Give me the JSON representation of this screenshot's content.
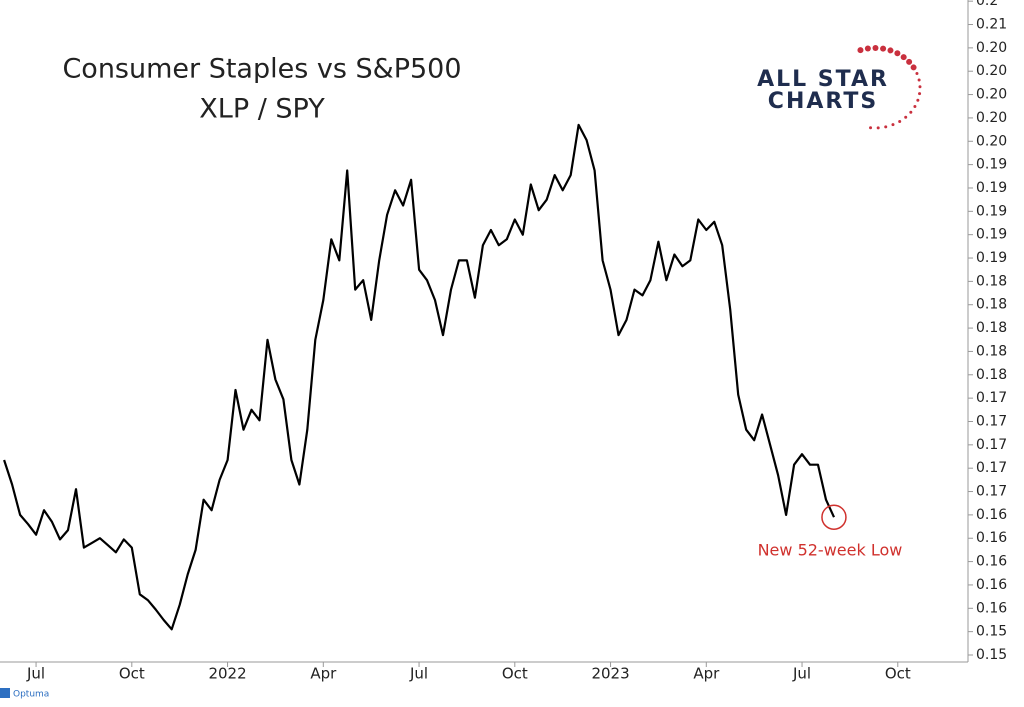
{
  "chart_data": {
    "type": "line",
    "title": "Consumer Staples vs S&P500",
    "subtitle": "XLP / SPY",
    "logo": [
      "ALL STAR",
      "CHARTS"
    ],
    "footer": "Optuma",
    "annotation": "New 52-week Low",
    "color": "#000000",
    "annotation_color": "#d0312d",
    "x": [
      5,
      5.25,
      5.5,
      5.75,
      6,
      6.25,
      6.5,
      6.75,
      7,
      7.25,
      7.5,
      7.75,
      8,
      8.25,
      8.5,
      8.75,
      9,
      9.25,
      9.5,
      9.75,
      10,
      10.25,
      10.5,
      10.75,
      11,
      11.25,
      11.5,
      11.75,
      12,
      12.25,
      12.5,
      12.75,
      13,
      13.25,
      13.5,
      13.75,
      14,
      14.25,
      14.5,
      14.75,
      15,
      15.25,
      15.5,
      15.75,
      16,
      16.25,
      16.5,
      16.75,
      17,
      17.25,
      17.5,
      17.75,
      18,
      18.25,
      18.5,
      18.75,
      19,
      19.25,
      19.5,
      19.75,
      20,
      20.25,
      20.5,
      20.75,
      21,
      21.25,
      21.5,
      21.75,
      22,
      22.25,
      22.5,
      22.75,
      23,
      23.25,
      23.5,
      23.75,
      24,
      24.25,
      24.5,
      24.75,
      25,
      25.25,
      25.5,
      25.75,
      26,
      26.25,
      26.5,
      26.75,
      27,
      27.25,
      27.5,
      27.75,
      28,
      28.25,
      28.5,
      28.75,
      29,
      29.25,
      29.5,
      29.75,
      30,
      30.25,
      30.5,
      30.75,
      31
    ],
    "values": [
      0.1687,
      0.1666,
      0.164,
      0.1632,
      0.1623,
      0.1644,
      0.1634,
      0.1619,
      0.1627,
      0.1662,
      0.1612,
      0.1616,
      0.162,
      0.1614,
      0.1608,
      0.1619,
      0.1612,
      0.1572,
      0.1567,
      0.1559,
      0.155,
      0.1542,
      0.1563,
      0.1589,
      0.161,
      0.1653,
      0.1644,
      0.167,
      0.1687,
      0.1747,
      0.1713,
      0.173,
      0.1721,
      0.179,
      0.1756,
      0.1739,
      0.1687,
      0.1666,
      0.1713,
      0.179,
      0.1824,
      0.1876,
      0.1858,
      0.1935,
      0.1833,
      0.1841,
      0.1807,
      0.1858,
      0.1897,
      0.1918,
      0.1905,
      0.1927,
      0.185,
      0.1841,
      0.1824,
      0.1794,
      0.1833,
      0.1858,
      0.1858,
      0.1826,
      0.1871,
      0.1884,
      0.1871,
      0.1876,
      0.1893,
      0.188,
      0.1923,
      0.1901,
      0.191,
      0.1931,
      0.1918,
      0.1931,
      0.1974,
      0.1961,
      0.1935,
      0.1858,
      0.1833,
      0.1794,
      0.1807,
      0.1833,
      0.1828,
      0.1841,
      0.1874,
      0.1841,
      0.1863,
      0.1853,
      0.1858,
      0.1893,
      0.1884,
      0.1891,
      0.1871,
      0.1816,
      0.1743,
      0.1713,
      0.1704,
      0.1726,
      0.17,
      0.1674,
      0.164,
      0.1683,
      0.1692,
      0.1683,
      0.1683,
      0.1653,
      0.1638
    ],
    "xlim": [
      4.87,
      35.2
    ],
    "xticks": [
      {
        "value": 6,
        "label": "Jul"
      },
      {
        "value": 9,
        "label": "Oct"
      },
      {
        "value": 12,
        "label": "2022"
      },
      {
        "value": 15,
        "label": "Apr"
      },
      {
        "value": 18,
        "label": "Jul"
      },
      {
        "value": 21,
        "label": "Oct"
      },
      {
        "value": 24,
        "label": "2023"
      },
      {
        "value": 27,
        "label": "Apr"
      },
      {
        "value": 30,
        "label": "Jul"
      },
      {
        "value": 33,
        "label": "Oct"
      }
    ],
    "ylim": [
      0.1514,
      0.2081
    ],
    "yticks": [
      {
        "value": 0.152,
        "label": "0.15"
      },
      {
        "value": 0.154,
        "label": "0.15"
      },
      {
        "value": 0.156,
        "label": "0.16"
      },
      {
        "value": 0.158,
        "label": "0.16"
      },
      {
        "value": 0.16,
        "label": "0.16"
      },
      {
        "value": 0.162,
        "label": "0.16"
      },
      {
        "value": 0.164,
        "label": "0.16"
      },
      {
        "value": 0.166,
        "label": "0.17"
      },
      {
        "value": 0.168,
        "label": "0.17"
      },
      {
        "value": 0.17,
        "label": "0.17"
      },
      {
        "value": 0.172,
        "label": "0.17"
      },
      {
        "value": 0.174,
        "label": "0.17"
      },
      {
        "value": 0.176,
        "label": "0.18"
      },
      {
        "value": 0.178,
        "label": "0.18"
      },
      {
        "value": 0.18,
        "label": "0.18"
      },
      {
        "value": 0.182,
        "label": "0.18"
      },
      {
        "value": 0.184,
        "label": "0.18"
      },
      {
        "value": 0.186,
        "label": "0.19"
      },
      {
        "value": 0.188,
        "label": "0.19"
      },
      {
        "value": 0.19,
        "label": "0.19"
      },
      {
        "value": 0.192,
        "label": "0.19"
      },
      {
        "value": 0.194,
        "label": "0.19"
      },
      {
        "value": 0.196,
        "label": "0.20"
      },
      {
        "value": 0.198,
        "label": "0.20"
      },
      {
        "value": 0.2,
        "label": "0.20"
      },
      {
        "value": 0.202,
        "label": "0.20"
      },
      {
        "value": 0.204,
        "label": "0.20"
      },
      {
        "value": 0.206,
        "label": "0.21"
      },
      {
        "value": 0.208,
        "label": "0.2"
      }
    ]
  }
}
